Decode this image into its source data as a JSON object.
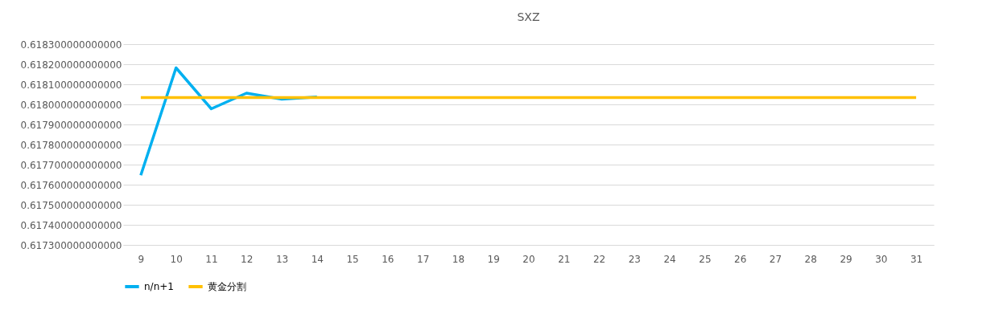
{
  "chart_data": {
    "type": "line",
    "title": "SXZ",
    "categories": [
      "9",
      "10",
      "11",
      "12",
      "13",
      "14",
      "15",
      "16",
      "17",
      "18",
      "19",
      "20",
      "21",
      "22",
      "23",
      "24",
      "25",
      "26",
      "27",
      "28",
      "29",
      "30",
      "31"
    ],
    "series": [
      {
        "name": "n/n+1",
        "color": "#00b0f0",
        "values": [
          0.617647,
          0.618182,
          0.617978,
          0.618056,
          0.618026,
          0.618037,
          null,
          null,
          null,
          null,
          null,
          null,
          null,
          null,
          null,
          null,
          null,
          null,
          null,
          null,
          null,
          null,
          null
        ]
      },
      {
        "name": "黄金分割",
        "color": "#ffc000",
        "values": [
          0.618034,
          0.618034,
          0.618034,
          0.618034,
          0.618034,
          0.618034,
          0.618034,
          0.618034,
          0.618034,
          0.618034,
          0.618034,
          0.618034,
          0.618034,
          0.618034,
          0.618034,
          0.618034,
          0.618034,
          0.618034,
          0.618034,
          0.618034,
          0.618034,
          0.618034,
          0.618034
        ]
      }
    ],
    "ylim": [
      0.6173,
      0.6183
    ],
    "yticks": [
      {
        "value": 0.6173,
        "label": "0.617300000000000"
      },
      {
        "value": 0.6174,
        "label": "0.617400000000000"
      },
      {
        "value": 0.6175,
        "label": "0.617500000000000"
      },
      {
        "value": 0.6176,
        "label": "0.617600000000000"
      },
      {
        "value": 0.6177,
        "label": "0.617700000000000"
      },
      {
        "value": 0.6178,
        "label": "0.617800000000000"
      },
      {
        "value": 0.6179,
        "label": "0.617900000000000"
      },
      {
        "value": 0.618,
        "label": "0.618000000000000"
      },
      {
        "value": 0.6181,
        "label": "0.618100000000000"
      },
      {
        "value": 0.6182,
        "label": "0.618200000000000"
      },
      {
        "value": 0.6183,
        "label": "0.618300000000000"
      }
    ],
    "grid": "y",
    "legend": "bottom",
    "marker": "none",
    "line_style": "solid"
  }
}
